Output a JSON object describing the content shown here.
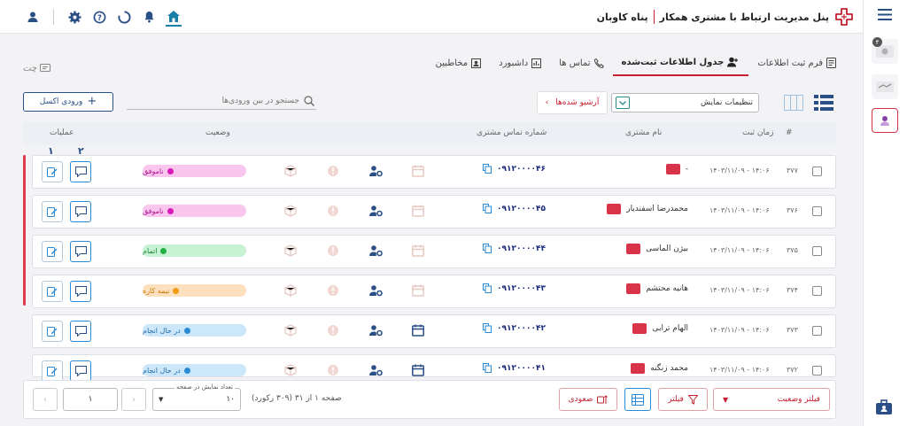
{
  "header": {
    "brand_name": "پناه کاوبان",
    "title": "پنل مدیریت ارتباط با مشتری همکار"
  },
  "tabs": [
    {
      "label": "فرم ثبت اطلاعات",
      "icon": "form-icon"
    },
    {
      "label": "جدول اطلاعات ثبت‌شده",
      "icon": "users-icon",
      "active": true
    },
    {
      "label": "تماس ها",
      "icon": "phone-icon"
    },
    {
      "label": "داشبورد",
      "icon": "chart-icon"
    },
    {
      "label": "مخاطبین",
      "icon": "contacts-icon"
    }
  ],
  "chat_label": "چت",
  "toolbar": {
    "excel_label": "ورودی اکسل",
    "search_placeholder": "جستجو در بین ورودی‌ها",
    "archive_label": "آرشیو شده‌ها",
    "display_settings_label": "تنظیمات نمایش"
  },
  "table": {
    "columns": {
      "index": "#",
      "time": "زمان ثبت",
      "customer": "نام مشتری",
      "phone": "شماره تماس مشتری",
      "status": "وضعیت",
      "ops": "عملیات"
    },
    "op_numbers": [
      "۱",
      "۲"
    ],
    "rows": [
      {
        "num": "۳۷۷",
        "date": "۱۴۰۳/۱۱/۰۹ - ۱۴:۰۶",
        "name": "-",
        "phone": "۰۹۱۲۰۰۰۰۴۶",
        "status": "ناموفق",
        "status_kind": "fail",
        "calendar_active": false
      },
      {
        "num": "۳۷۶",
        "date": "۱۴۰۳/۱۱/۰۹ - ۱۴:۰۶",
        "name": "محمدرضا اسفندیار",
        "phone": "۰۹۱۲۰۰۰۰۴۵",
        "status": "ناموفق",
        "status_kind": "fail",
        "calendar_active": false
      },
      {
        "num": "۳۷۵",
        "date": "۱۴۰۳/۱۱/۰۹ - ۱۴:۰۶",
        "name": "بیژن الماسی",
        "phone": "۰۹۱۲۰۰۰۰۴۴",
        "status": "اتمام",
        "status_kind": "done",
        "calendar_active": false
      },
      {
        "num": "۳۷۴",
        "date": "۱۴۰۳/۱۱/۰۹ - ۱۴:۰۶",
        "name": "هانیه محتشم",
        "phone": "۰۹۱۲۰۰۰۰۴۳",
        "status": "نیمه کاره",
        "status_kind": "half",
        "calendar_active": false
      },
      {
        "num": "۳۷۳",
        "date": "۱۴۰۳/۱۱/۰۹ - ۱۴:۰۶",
        "name": "الهام ترابی",
        "phone": "۰۹۱۲۰۰۰۰۴۲",
        "status": "در حال انجام",
        "status_kind": "progress",
        "calendar_active": true
      },
      {
        "num": "۳۷۲",
        "date": "۱۴۰۳/۱۱/۰۹ - ۱۴:۰۶",
        "name": "محمد زنگنه",
        "phone": "۰۹۱۲۰۰۰۰۴۱",
        "status": "در حال انجام",
        "status_kind": "progress",
        "calendar_active": true
      }
    ]
  },
  "footer": {
    "status_filter_label": "فیلتر وضعیت",
    "filter_label": "فیلتر",
    "sort_label": "صعودی",
    "page_info": "صفحه ۱ از ۳۱ (۳۰۹ رکورد)",
    "per_page_label": "تعداد نمایش در صفحه",
    "per_page_value": "۱۰",
    "page_value": "۱"
  },
  "sidebar": {
    "badge": "۴"
  },
  "colors": {
    "brand_red": "#c42030",
    "accent_blue": "#2a4f86",
    "fail_bg": "#f9c6ee",
    "fail_dot": "#d61bb7",
    "done_bg": "#c8f2d4",
    "done_dot": "#23b043",
    "half_bg": "#fde0bd",
    "half_dot": "#f39c12",
    "progress_bg": "#cde7fa",
    "progress_dot": "#2a8ad6"
  }
}
